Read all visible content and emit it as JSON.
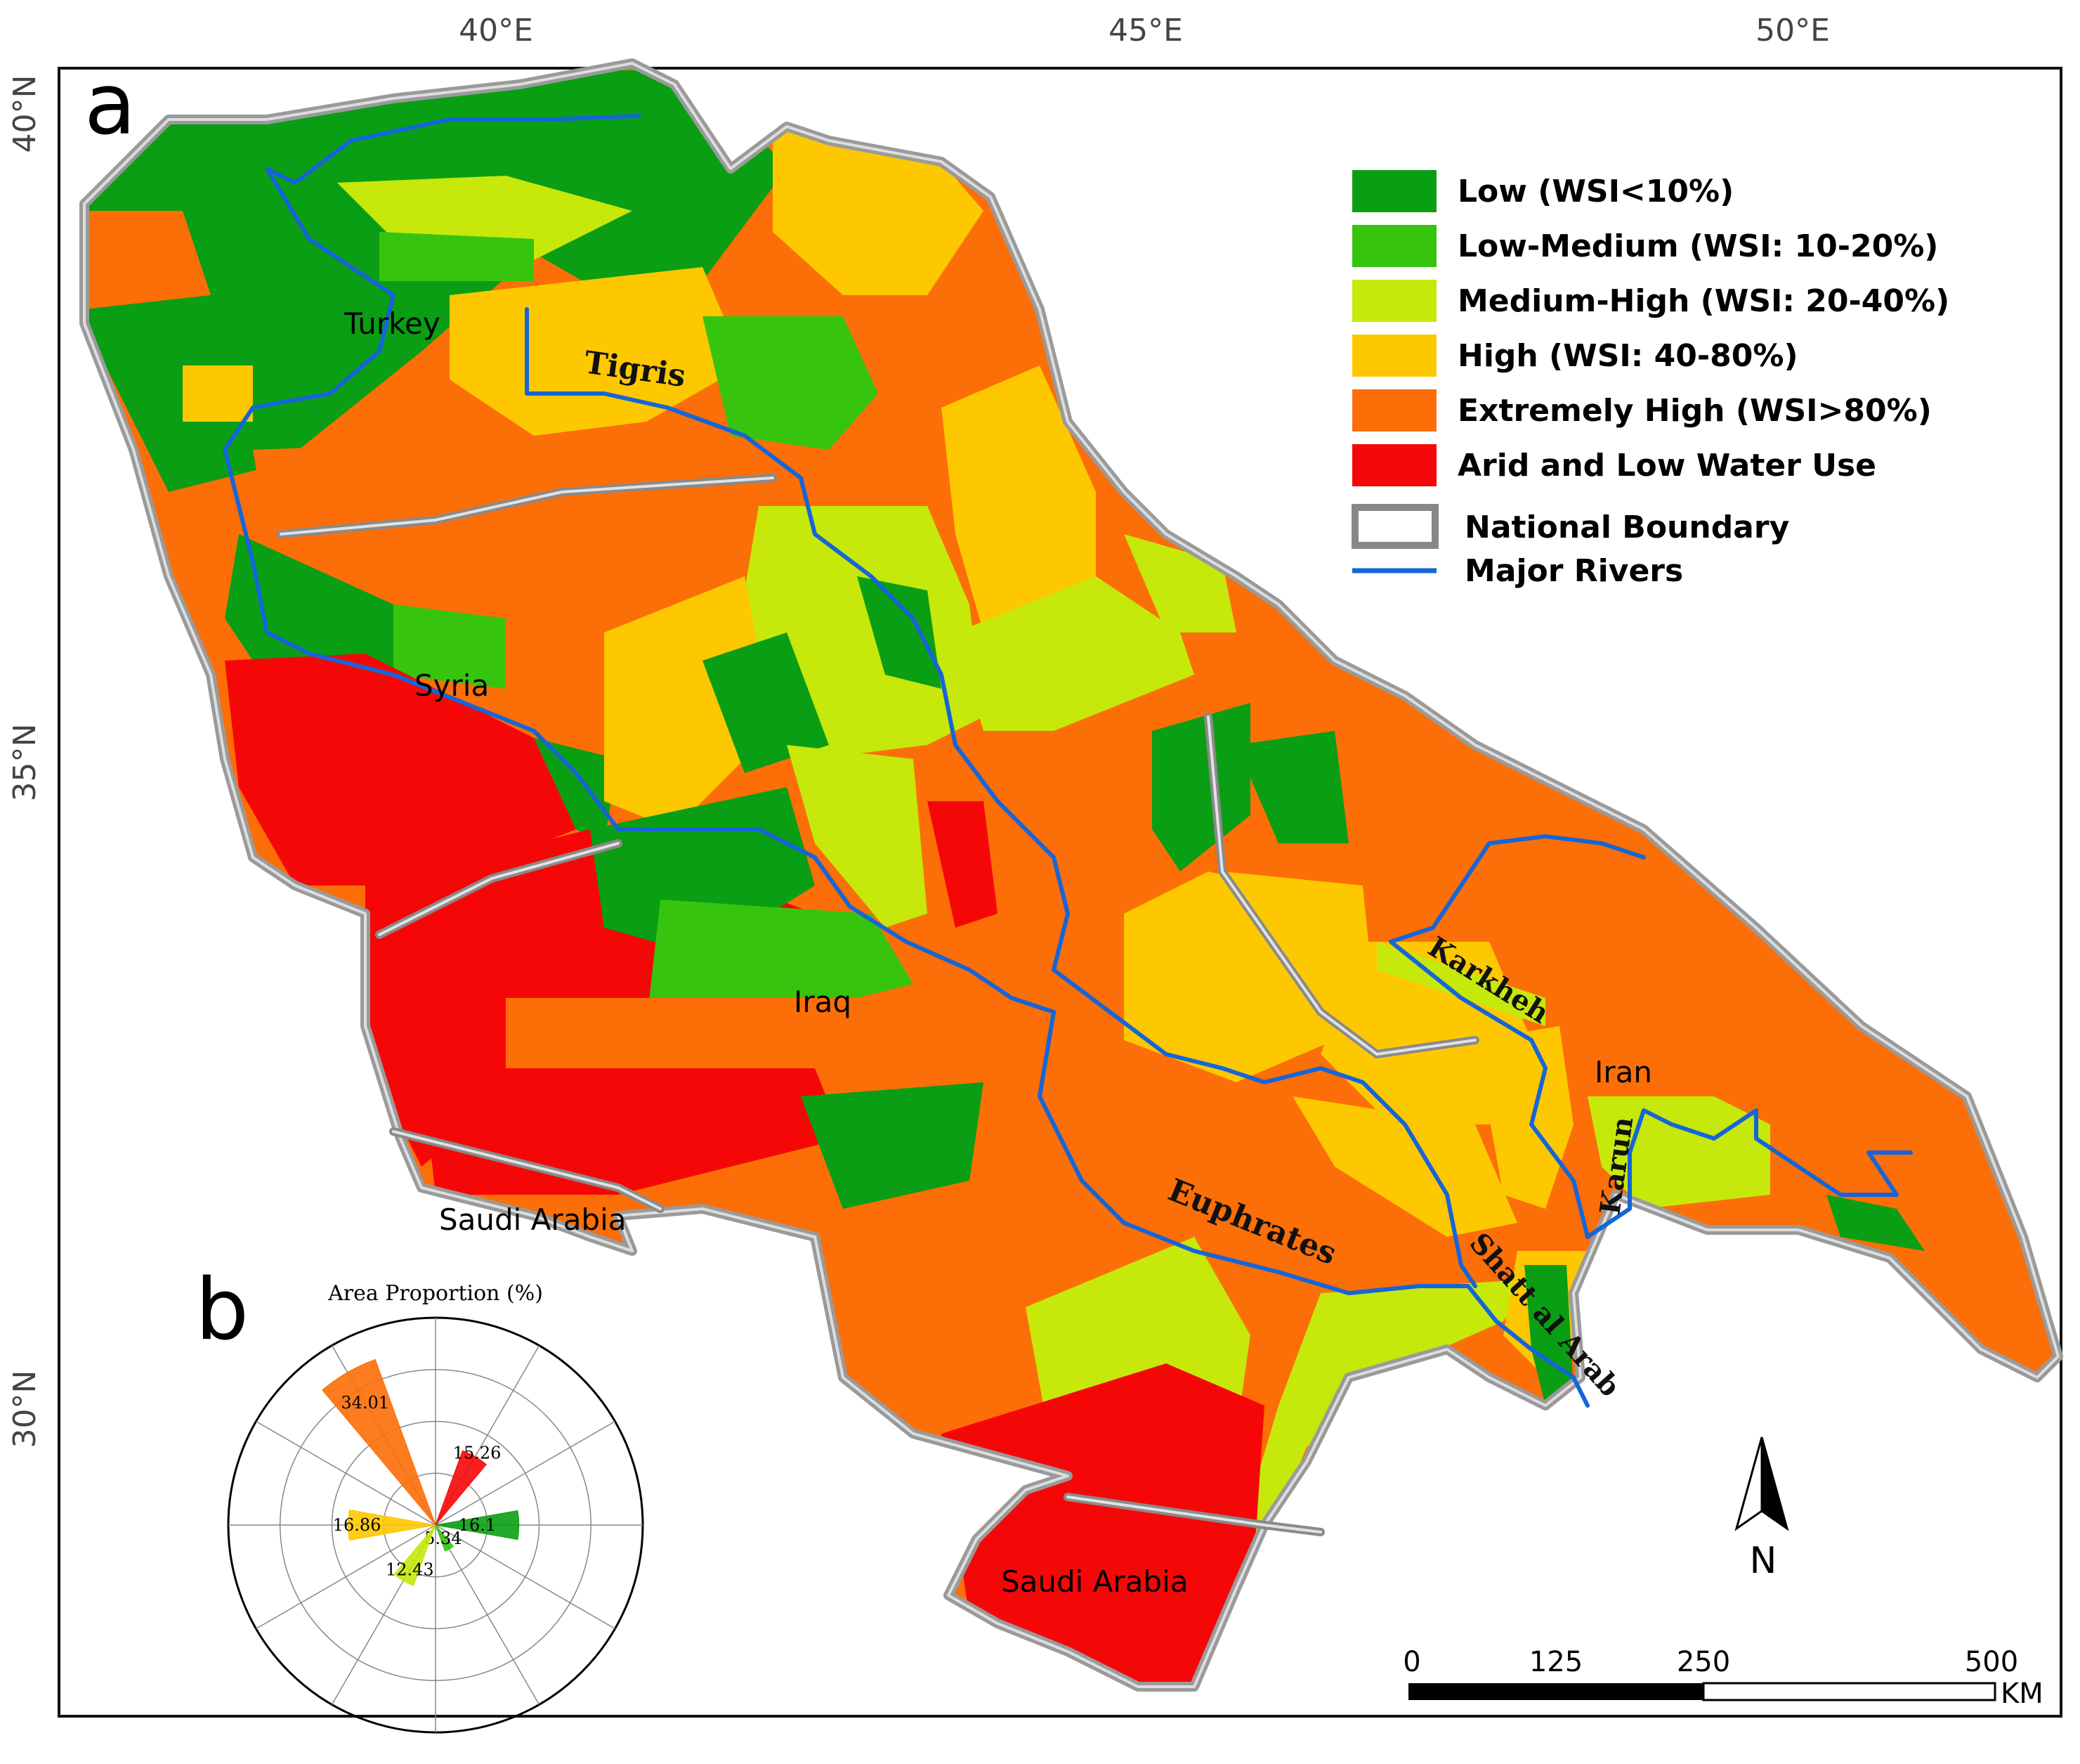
{
  "panel_labels": {
    "a": "a",
    "b": "b"
  },
  "graticule": {
    "lon_labels": [
      "40°E",
      "45°E",
      "50°E"
    ],
    "lat_labels": [
      "40°N",
      "35°N",
      "30°N"
    ]
  },
  "legend": {
    "items": [
      {
        "label": "Low (WSI<10%)",
        "color": "#0a9e14"
      },
      {
        "label": "Low-Medium (WSI: 10-20%)",
        "color": "#36c40f"
      },
      {
        "label": "Medium-High (WSI: 20-40%)",
        "color": "#c6e80a"
      },
      {
        "label": "High (WSI: 40-80%)",
        "color": "#fdc800"
      },
      {
        "label": "Extremely High (WSI>80%)",
        "color": "#fc6e07"
      },
      {
        "label": "Arid and Low Water Use",
        "color": "#f60707"
      }
    ],
    "boundary_label": "National Boundary",
    "boundary_color": "#888888",
    "river_label": "Major Rivers",
    "river_color": "#1565d8"
  },
  "country_labels": [
    "Turkey",
    "Syria",
    "Iraq",
    "Iran",
    "Saudi Arabia",
    "Saudi Arabia"
  ],
  "river_labels": [
    "Tigris",
    "Euphrates",
    "Karkheh",
    "Karun",
    "Shatt al Arab"
  ],
  "north_arrow": {
    "label": "N",
    "icon": "north-arrow-icon"
  },
  "scale_bar": {
    "ticks": [
      "0",
      "125",
      "250",
      "500"
    ],
    "unit": "KM"
  },
  "chart_data": {
    "type": "polar-bar",
    "title": "Area Proportion (%)",
    "categories": [
      "Low (WSI<10%)",
      "Low-Medium (WSI: 10-20%)",
      "Medium-High (WSI: 20-40%)",
      "High (WSI: 40-80%)",
      "Extremely High (WSI>80%)",
      "Arid and Low Water Use"
    ],
    "values": [
      16.1,
      5.34,
      12.43,
      16.86,
      34.01,
      15.26
    ],
    "colors": [
      "#0a9e14",
      "#36c40f",
      "#c6e80a",
      "#fdc800",
      "#fc6e07",
      "#f60707"
    ],
    "value_labels": [
      "16.1",
      "5.34",
      "12.43",
      "16.86",
      "34.01",
      "15.26"
    ],
    "rlim": [
      0,
      40
    ],
    "grid": true
  }
}
